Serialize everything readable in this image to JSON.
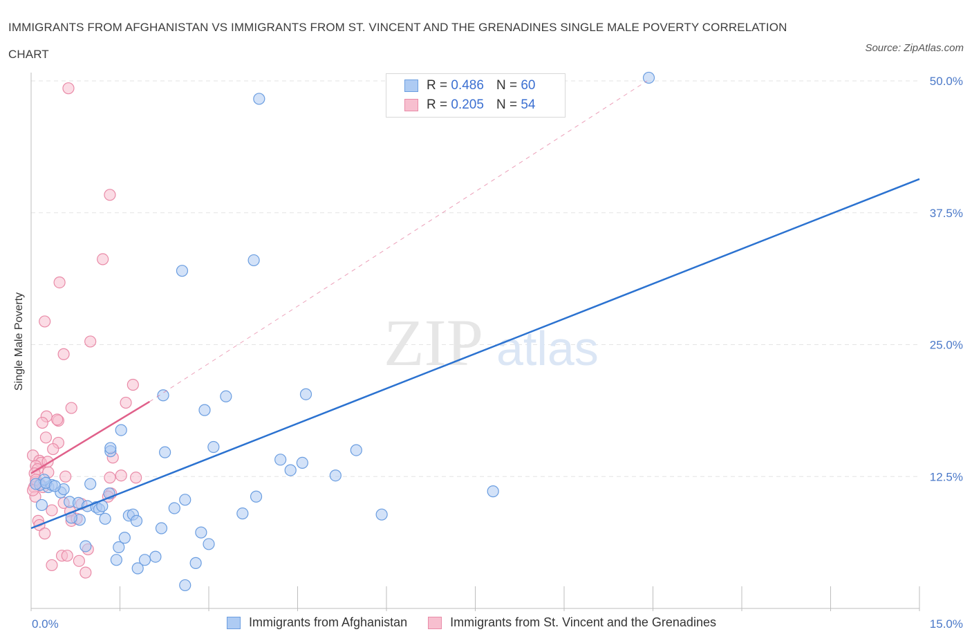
{
  "header": {
    "title": "IMMIGRANTS FROM AFGHANISTAN VS IMMIGRANTS FROM ST. VINCENT AND THE GRENADINES SINGLE MALE POVERTY CORRELATION CHART",
    "source": "Source: ZipAtlas.com"
  },
  "watermark": {
    "zip": "ZIP",
    "atlas": "atlas"
  },
  "legend": {
    "afghanistan": {
      "r_label": "R =",
      "r_value": "0.486",
      "n_label": "N =",
      "n_value": "60"
    },
    "stvincent": {
      "r_label": "R =",
      "r_value": "0.205",
      "n_label": "N =",
      "n_value": "54"
    }
  },
  "bottom_legend": {
    "afghanistan": "Immigrants from Afghanistan",
    "stvincent": "Immigrants from St. Vincent and the Grenadines"
  },
  "colors": {
    "blue_fill": "#aecbf3",
    "blue_stroke": "#6a9de0",
    "blue_line": "#2b72d0",
    "pink_fill": "#f7bfcf",
    "pink_stroke": "#e98aa7",
    "pink_line": "#e0608a",
    "tick": "#4a78c8",
    "grid": "#e3e3e3"
  },
  "chart_data": {
    "type": "scatter",
    "title": "IMMIGRANTS FROM AFGHANISTAN VS IMMIGRANTS FROM ST. VINCENT AND THE GRENADINES SINGLE MALE POVERTY CORRELATION CHART",
    "xlabel": "",
    "ylabel": "Single Male Poverty",
    "xlim": [
      0,
      15
    ],
    "ylim": [
      0,
      50
    ],
    "x_tick_labels": [
      "0.0%",
      "15.0%"
    ],
    "y_ticks": [
      12.5,
      25.0,
      37.5,
      50.0
    ],
    "y_tick_labels": [
      "12.5%",
      "25.0%",
      "37.5%",
      "50.0%"
    ],
    "grid": true,
    "legend_position": "top-center",
    "series": [
      {
        "name": "Immigrants from Afghanistan",
        "color": "#aecbf3",
        "points": [
          [
            10.43,
            50.3
          ],
          [
            3.85,
            48.3
          ],
          [
            3.76,
            33.0
          ],
          [
            2.55,
            32.0
          ],
          [
            4.64,
            20.3
          ],
          [
            3.29,
            20.1
          ],
          [
            2.23,
            20.2
          ],
          [
            2.93,
            18.8
          ],
          [
            1.52,
            16.9
          ],
          [
            3.08,
            15.3
          ],
          [
            2.26,
            14.8
          ],
          [
            1.34,
            14.9
          ],
          [
            1.34,
            15.2
          ],
          [
            5.49,
            15.0
          ],
          [
            4.21,
            14.1
          ],
          [
            4.58,
            13.8
          ],
          [
            4.38,
            13.1
          ],
          [
            5.14,
            12.6
          ],
          [
            7.8,
            11.1
          ],
          [
            1.0,
            11.8
          ],
          [
            0.29,
            11.5
          ],
          [
            0.15,
            11.7
          ],
          [
            0.35,
            11.7
          ],
          [
            0.5,
            11.0
          ],
          [
            0.55,
            11.3
          ],
          [
            0.22,
            12.2
          ],
          [
            0.08,
            11.8
          ],
          [
            0.65,
            10.1
          ],
          [
            3.8,
            10.6
          ],
          [
            2.6,
            10.3
          ],
          [
            1.32,
            10.9
          ],
          [
            0.8,
            10.0
          ],
          [
            0.95,
            9.7
          ],
          [
            1.1,
            9.6
          ],
          [
            1.15,
            9.4
          ],
          [
            1.2,
            9.7
          ],
          [
            2.42,
            9.5
          ],
          [
            3.57,
            9.0
          ],
          [
            5.92,
            8.9
          ],
          [
            1.65,
            8.8
          ],
          [
            1.72,
            8.9
          ],
          [
            1.78,
            8.3
          ],
          [
            1.25,
            8.5
          ],
          [
            0.82,
            8.4
          ],
          [
            0.68,
            8.6
          ],
          [
            2.2,
            7.6
          ],
          [
            2.87,
            7.2
          ],
          [
            1.58,
            6.7
          ],
          [
            3.0,
            6.1
          ],
          [
            0.92,
            5.9
          ],
          [
            1.48,
            5.8
          ],
          [
            2.1,
            4.9
          ],
          [
            1.92,
            4.6
          ],
          [
            1.44,
            4.6
          ],
          [
            2.78,
            4.3
          ],
          [
            1.8,
            3.8
          ],
          [
            2.6,
            2.2
          ],
          [
            0.25,
            11.9
          ],
          [
            0.4,
            11.6
          ],
          [
            0.18,
            9.8
          ]
        ]
      },
      {
        "name": "Immigrants from St. Vincent and the Grenadines",
        "color": "#f7bfcf",
        "points": [
          [
            0.63,
            49.3
          ],
          [
            1.33,
            39.2
          ],
          [
            1.21,
            33.1
          ],
          [
            0.48,
            30.9
          ],
          [
            0.23,
            27.2
          ],
          [
            0.55,
            24.1
          ],
          [
            1.0,
            25.3
          ],
          [
            1.72,
            21.2
          ],
          [
            1.6,
            19.5
          ],
          [
            0.68,
            19.0
          ],
          [
            0.26,
            18.2
          ],
          [
            0.46,
            17.8
          ],
          [
            0.44,
            17.9
          ],
          [
            0.19,
            17.6
          ],
          [
            0.25,
            16.2
          ],
          [
            0.46,
            15.7
          ],
          [
            0.37,
            15.1
          ],
          [
            1.38,
            14.3
          ],
          [
            0.03,
            14.5
          ],
          [
            0.14,
            14.0
          ],
          [
            0.17,
            13.8
          ],
          [
            0.28,
            13.9
          ],
          [
            0.08,
            13.5
          ],
          [
            0.11,
            13.2
          ],
          [
            0.06,
            12.8
          ],
          [
            0.29,
            12.9
          ],
          [
            0.58,
            12.5
          ],
          [
            1.52,
            12.6
          ],
          [
            1.33,
            12.4
          ],
          [
            1.77,
            12.4
          ],
          [
            0.08,
            12.0
          ],
          [
            0.15,
            11.8
          ],
          [
            0.2,
            11.5
          ],
          [
            0.05,
            11.5
          ],
          [
            1.35,
            10.9
          ],
          [
            1.3,
            10.6
          ],
          [
            0.07,
            10.6
          ],
          [
            0.55,
            10.0
          ],
          [
            0.35,
            9.3
          ],
          [
            0.66,
            9.2
          ],
          [
            0.85,
            9.9
          ],
          [
            0.68,
            8.3
          ],
          [
            0.77,
            8.5
          ],
          [
            0.12,
            8.3
          ],
          [
            0.14,
            7.9
          ],
          [
            0.23,
            7.1
          ],
          [
            0.96,
            5.6
          ],
          [
            0.52,
            5.0
          ],
          [
            0.61,
            5.0
          ],
          [
            0.81,
            4.5
          ],
          [
            0.35,
            4.1
          ],
          [
            0.92,
            3.4
          ],
          [
            0.08,
            12.2
          ],
          [
            0.03,
            11.2
          ]
        ]
      }
    ],
    "trend_lines": [
      {
        "series": "Immigrants from Afghanistan",
        "x": [
          0,
          15
        ],
        "y": [
          7.6,
          40.7
        ],
        "style": "solid"
      },
      {
        "series": "Immigrants from St. Vincent and the Grenadines",
        "x": [
          0,
          2.0
        ],
        "y": [
          12.8,
          19.6
        ],
        "style": "solid"
      },
      {
        "series": "Immigrants from St. Vincent and the Grenadines",
        "x": [
          2.0,
          10.4
        ],
        "y": [
          19.6,
          50.0
        ],
        "style": "dashed"
      }
    ]
  }
}
